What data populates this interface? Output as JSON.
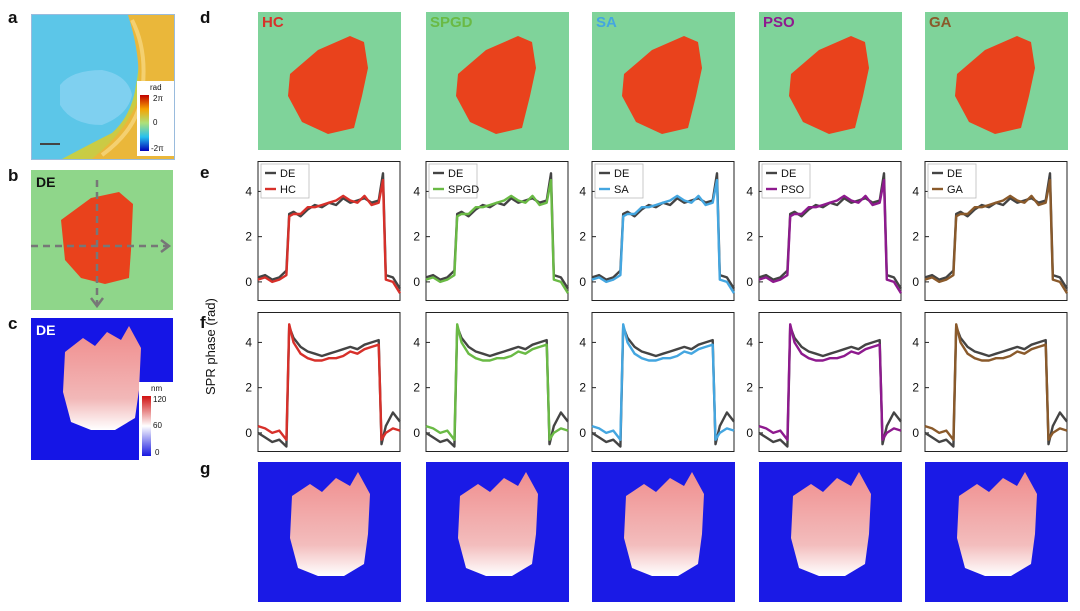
{
  "panel_letters": {
    "a": "a",
    "b": "b",
    "c": "c",
    "d": "d",
    "e": "e",
    "f": "f",
    "g": "g"
  },
  "de_label": "DE",
  "y_axis_label": "SPR phase (rad)",
  "colorbar_phase": {
    "unit": "rad",
    "max": "2π",
    "mid": "0",
    "min": "-2π"
  },
  "colorbar_height": {
    "unit": "nm",
    "max": "120",
    "mid": "60",
    "min": "0"
  },
  "algorithms": [
    {
      "name": "HC",
      "color": "#d7302a"
    },
    {
      "name": "SPGD",
      "color": "#6aba45"
    },
    {
      "name": "SA",
      "color": "#44a6e0"
    },
    {
      "name": "PSO",
      "color": "#8e1a8e"
    },
    {
      "name": "GA",
      "color": "#8a5a2b"
    }
  ],
  "reference": {
    "name": "DE",
    "color": "#444444"
  },
  "colors": {
    "phase_bg": "#7fd39a",
    "phase_obj": "#e9421c",
    "height_bg": "#1a1ae6",
    "height_obj": "#f08e8e"
  },
  "chart_data": [
    {
      "type": "line",
      "panel": "e",
      "ylabel": "SPR phase (rad)",
      "yticks": [
        0,
        2,
        4
      ],
      "ylim": [
        -0.8,
        5.3
      ],
      "x": [
        0,
        0.05,
        0.1,
        0.15,
        0.2,
        0.22,
        0.25,
        0.3,
        0.35,
        0.4,
        0.45,
        0.5,
        0.55,
        0.6,
        0.65,
        0.7,
        0.75,
        0.8,
        0.85,
        0.88,
        0.9,
        0.95,
        1.0
      ],
      "series": [
        {
          "name": "DE",
          "values": [
            0.2,
            0.3,
            0.1,
            0.2,
            0.5,
            3.0,
            3.1,
            2.9,
            3.2,
            3.4,
            3.3,
            3.5,
            3.4,
            3.7,
            3.5,
            3.6,
            3.7,
            3.5,
            3.6,
            4.8,
            0.3,
            0.2,
            -0.3
          ]
        },
        {
          "name": "algorithm",
          "values": [
            0.1,
            0.2,
            0.0,
            0.1,
            0.3,
            2.9,
            3.0,
            3.0,
            3.3,
            3.3,
            3.4,
            3.5,
            3.6,
            3.8,
            3.6,
            3.5,
            3.8,
            3.4,
            3.5,
            4.5,
            0.1,
            0.0,
            -0.5
          ]
        }
      ]
    },
    {
      "type": "line",
      "panel": "f",
      "ylabel": "SPR phase (rad)",
      "yticks": [
        0,
        2,
        4
      ],
      "ylim": [
        -0.8,
        5.3
      ],
      "x": [
        0,
        0.05,
        0.1,
        0.15,
        0.2,
        0.22,
        0.25,
        0.3,
        0.35,
        0.4,
        0.45,
        0.5,
        0.55,
        0.6,
        0.65,
        0.7,
        0.75,
        0.8,
        0.85,
        0.87,
        0.9,
        0.95,
        1.0
      ],
      "series": [
        {
          "name": "DE",
          "values": [
            0.0,
            -0.2,
            -0.4,
            -0.3,
            -0.6,
            4.7,
            4.2,
            3.8,
            3.6,
            3.5,
            3.4,
            3.5,
            3.6,
            3.7,
            3.8,
            3.7,
            3.9,
            4.0,
            4.1,
            -0.5,
            0.3,
            0.9,
            0.5
          ]
        },
        {
          "name": "algorithm",
          "values": [
            0.3,
            0.2,
            0.0,
            0.1,
            -0.3,
            4.8,
            4.0,
            3.5,
            3.3,
            3.2,
            3.2,
            3.3,
            3.3,
            3.4,
            3.6,
            3.5,
            3.7,
            3.8,
            3.9,
            -0.3,
            0.0,
            0.2,
            0.1
          ]
        }
      ]
    }
  ]
}
